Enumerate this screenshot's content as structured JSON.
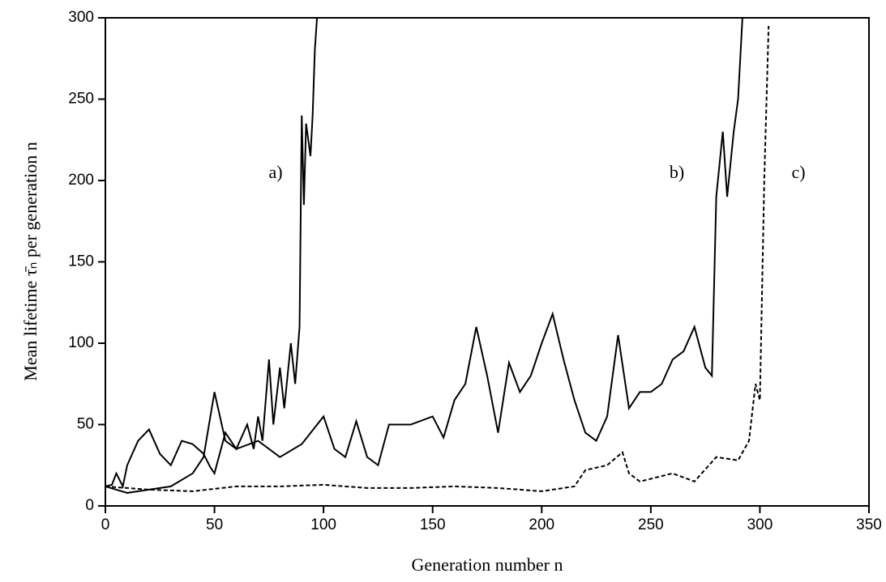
{
  "chart_data": {
    "type": "line",
    "x_label": "Generation number  n",
    "y_label": "Mean lifetime τ̄ₙ per generation n",
    "xlim": [
      0,
      350
    ],
    "xticks": [
      0,
      50,
      100,
      150,
      200,
      250,
      300,
      350
    ],
    "ylim": [
      0,
      300
    ],
    "yticks": [
      0,
      50,
      100,
      150,
      200,
      250,
      300
    ],
    "series": [
      {
        "name": "a)",
        "color": "#000000",
        "style": "solid",
        "x": [
          0,
          3,
          5,
          8,
          10,
          15,
          20,
          25,
          30,
          35,
          40,
          45,
          48,
          50,
          55,
          60,
          65,
          68,
          70,
          72,
          75,
          77,
          80,
          82,
          85,
          87,
          89,
          90,
          91,
          92,
          94,
          95,
          96,
          97
        ],
        "values": [
          12,
          13,
          20,
          12,
          25,
          40,
          47,
          32,
          25,
          40,
          38,
          32,
          24,
          20,
          45,
          35,
          50,
          35,
          55,
          40,
          90,
          50,
          85,
          60,
          100,
          75,
          110,
          240,
          185,
          235,
          215,
          240,
          280,
          300
        ]
      },
      {
        "name": "b)",
        "color": "#000000",
        "style": "solid",
        "x": [
          0,
          5,
          10,
          20,
          30,
          40,
          45,
          50,
          55,
          60,
          70,
          80,
          90,
          100,
          105,
          110,
          115,
          120,
          125,
          130,
          140,
          150,
          155,
          160,
          165,
          170,
          175,
          180,
          185,
          190,
          195,
          200,
          205,
          210,
          215,
          220,
          225,
          230,
          235,
          240,
          245,
          250,
          255,
          260,
          265,
          270,
          275,
          278,
          280,
          283,
          285,
          288,
          290,
          292
        ],
        "values": [
          12,
          10,
          8,
          10,
          12,
          20,
          30,
          70,
          40,
          35,
          40,
          30,
          38,
          55,
          35,
          30,
          52,
          30,
          25,
          50,
          50,
          55,
          42,
          65,
          75,
          110,
          80,
          45,
          88,
          70,
          80,
          100,
          118,
          90,
          65,
          45,
          40,
          55,
          105,
          60,
          70,
          70,
          75,
          90,
          95,
          110,
          85,
          80,
          190,
          230,
          190,
          230,
          250,
          300
        ]
      },
      {
        "name": "c)",
        "color": "#000000",
        "style": "dashed",
        "x": [
          0,
          20,
          40,
          60,
          80,
          100,
          120,
          140,
          160,
          180,
          200,
          215,
          220,
          230,
          237,
          240,
          245,
          260,
          270,
          280,
          290,
          295,
          298,
          300,
          302,
          304
        ],
        "values": [
          12,
          10,
          9,
          12,
          12,
          13,
          11,
          11,
          12,
          11,
          9,
          12,
          22,
          25,
          33,
          20,
          15,
          20,
          15,
          30,
          28,
          40,
          75,
          65,
          200,
          295
        ]
      }
    ]
  }
}
